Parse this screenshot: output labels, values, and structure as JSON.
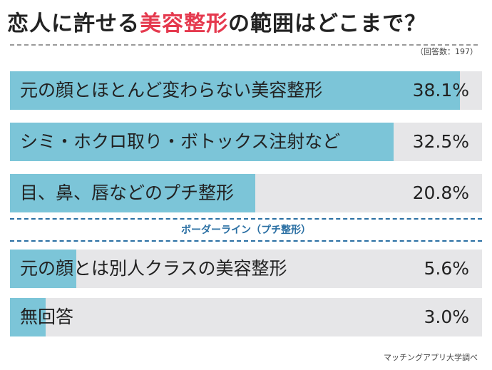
{
  "title": {
    "prefix": "恋人に許せる",
    "highlight": "美容整形",
    "suffix": "の範囲はどこまで？"
  },
  "respondents": "（回答数：197）",
  "border_line_label": "ボーダーライン（プチ整形）",
  "source": "マッチングアプリ大学調べ",
  "colors": {
    "bar_fill": "#7cc5d8",
    "bar_track": "#e6e6e8",
    "title_highlight": "#e53a4f",
    "divider": "#2a6fa3"
  },
  "chart_data": {
    "type": "bar",
    "orientation": "horizontal",
    "title": "恋人に許せる美容整形の範囲はどこまで？",
    "categories": [
      "元の顔とほとんど変わらない美容整形",
      "シミ・ホクロ取り・ボトックス注射など",
      "目、鼻、唇などのプチ整形",
      "元の顔とは別人クラスの美容整形",
      "無回答"
    ],
    "values": [
      38.1,
      32.5,
      20.8,
      5.6,
      3.0
    ],
    "value_labels": [
      "38.1%",
      "32.5%",
      "20.8%",
      "5.6%",
      "3.0%"
    ],
    "xlim": [
      0,
      40
    ]
  }
}
